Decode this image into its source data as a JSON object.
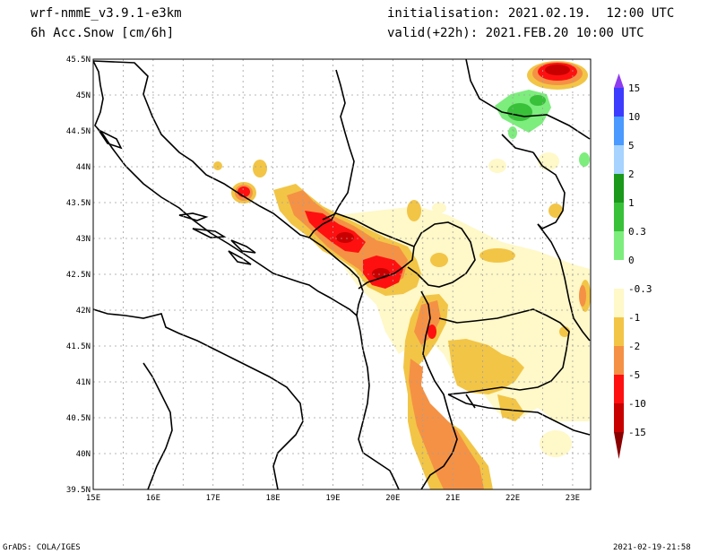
{
  "header": {
    "model": "wrf-nmmE_v3.9.1-e3km",
    "field": "6h Acc.Snow [cm/6h]",
    "init": "initialisation: 2021.02.19.  12:00 UTC",
    "valid": "valid(+22h): 2021.FEB.20 10:00 UTC"
  },
  "axes": {
    "lat_labels": [
      "45.5N",
      "45N",
      "44.5N",
      "44N",
      "43.5N",
      "43N",
      "42.5N",
      "42N",
      "41.5N",
      "41N",
      "40.5N",
      "40N",
      "39.5N"
    ],
    "lon_labels": [
      "15E",
      "16E",
      "17E",
      "18E",
      "19E",
      "20E",
      "21E",
      "22E",
      "23E"
    ]
  },
  "colorbar": {
    "labels": [
      "15",
      "10",
      "5",
      "2",
      "1",
      "0.3",
      "0",
      "-0.3",
      "-1",
      "-2",
      "-5",
      "-10",
      "-15"
    ],
    "colors": [
      "#8e3cf0",
      "#3c3cff",
      "#4a9aff",
      "#a6d3ff",
      "#1a991a",
      "#39c139",
      "#7ded7d",
      "#ffffff",
      "#fff8c8",
      "#f2c546",
      "#f59145",
      "#ff1010",
      "#c80000",
      "#8a0000"
    ]
  },
  "footer": {
    "left": "GrADS: COLA/IGES",
    "right": "2021-02-19-21:58"
  }
}
